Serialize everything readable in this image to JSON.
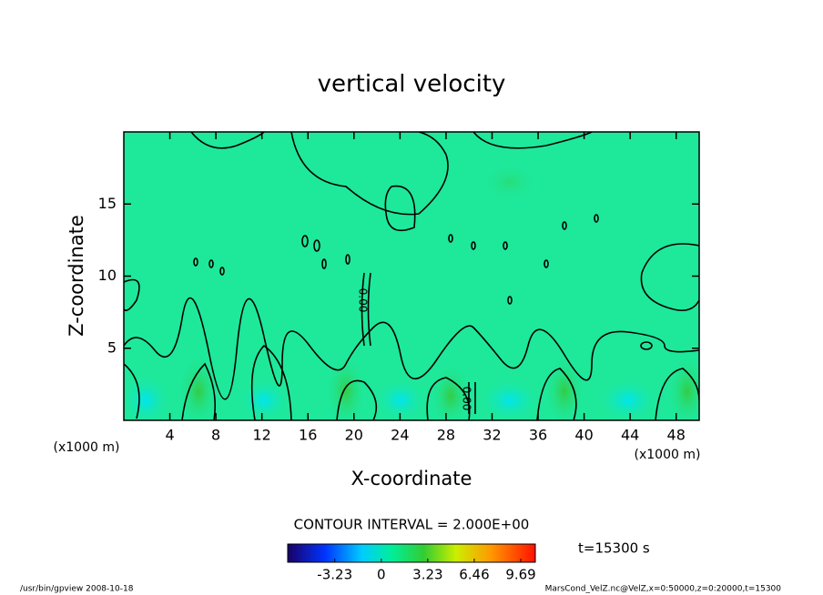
{
  "chart_data": {
    "type": "contour",
    "title": "vertical velocity",
    "x_label": "X-coordinate",
    "y_label": "Z-coordinate",
    "x_unit": "(x1000 m)",
    "xlim": [
      0,
      50
    ],
    "xticks": [
      4,
      8,
      12,
      16,
      20,
      24,
      28,
      32,
      36,
      40,
      44,
      48
    ],
    "ylim": [
      0,
      20
    ],
    "yticks": [
      5,
      10,
      15
    ],
    "contour_interval": "CONTOUR INTERVAL = 2.000E+00",
    "contour_labels": [
      "0.00",
      "0.00"
    ],
    "colorbar_lim": [
      -6.5,
      10.7
    ],
    "colorbar_ticks": [
      -3.23,
      0,
      3.23,
      6.46,
      9.69
    ],
    "time": "t=15300 s",
    "footer_left": "/usr/bin/gpview   2008-10-18",
    "footer_right": "MarsCond_VelZ.nc@VelZ,x=0:50000,z=0:20000,t=15300"
  }
}
